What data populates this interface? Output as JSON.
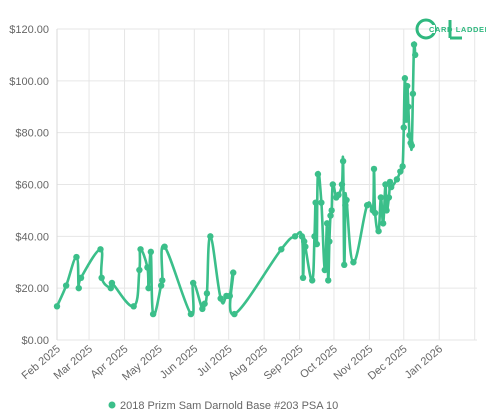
{
  "logo": {
    "text": "CARD LADDER",
    "color": "#2fb87f"
  },
  "chart_data": {
    "type": "line",
    "title": "",
    "xlabel": "",
    "ylabel": "",
    "ylim": [
      0,
      120
    ],
    "yticks": [
      0,
      20,
      40,
      60,
      80,
      100,
      120
    ],
    "ytick_labels": [
      "$0.00",
      "$20.00",
      "$40.00",
      "$60.00",
      "$80.00",
      "$100.00",
      "$120.00"
    ],
    "xlim": [
      "2025-02-01",
      "2026-02-03"
    ],
    "xtick_labels": [
      "Feb 2025",
      "Mar 2025",
      "Apr 2025",
      "May 2025",
      "Jun 2025",
      "Jul 2025",
      "Aug 2025",
      "Sep 2025",
      "Oct 2025",
      "Nov 2025",
      "Dec 2025",
      "Jan 2026"
    ],
    "grid": true,
    "legend_position": "bottom",
    "series": [
      {
        "name": "2018 Prizm Sam Darnold Base #203 PSA 10",
        "color": "#3bbf8a",
        "points": [
          [
            "2025-02-01",
            13
          ],
          [
            "2025-02-09",
            21
          ],
          [
            "2025-02-18",
            32
          ],
          [
            "2025-02-20",
            20
          ],
          [
            "2025-02-22",
            24
          ],
          [
            "2025-03-11",
            35
          ],
          [
            "2025-03-12",
            24
          ],
          [
            "2025-03-20",
            20
          ],
          [
            "2025-03-21",
            22
          ],
          [
            "2025-04-09",
            13
          ],
          [
            "2025-04-14",
            27
          ],
          [
            "2025-04-15",
            35
          ],
          [
            "2025-04-21",
            28
          ],
          [
            "2025-04-22",
            20
          ],
          [
            "2025-04-24",
            34
          ],
          [
            "2025-04-26",
            10
          ],
          [
            "2025-05-03",
            21
          ],
          [
            "2025-05-04",
            23
          ],
          [
            "2025-05-06",
            36
          ],
          [
            "2025-05-29",
            10
          ],
          [
            "2025-05-31",
            22
          ],
          [
            "2025-06-08",
            12
          ],
          [
            "2025-06-10",
            14
          ],
          [
            "2025-06-12",
            18
          ],
          [
            "2025-06-15",
            40
          ],
          [
            "2025-06-24",
            16
          ],
          [
            "2025-06-29",
            17
          ],
          [
            "2025-07-02",
            17
          ],
          [
            "2025-07-05",
            26
          ],
          [
            "2025-07-06",
            10
          ],
          [
            "2025-08-16",
            35
          ],
          [
            "2025-08-28",
            40
          ],
          [
            "2025-09-03",
            40
          ],
          [
            "2025-09-04",
            24
          ],
          [
            "2025-09-05",
            38
          ],
          [
            "2025-09-06",
            36
          ],
          [
            "2025-09-12",
            23
          ],
          [
            "2025-09-14",
            40
          ],
          [
            "2025-09-15",
            53
          ],
          [
            "2025-09-16",
            37
          ],
          [
            "2025-09-17",
            64
          ],
          [
            "2025-09-20",
            53
          ],
          [
            "2025-09-23",
            27
          ],
          [
            "2025-09-25",
            45
          ],
          [
            "2025-09-26",
            23
          ],
          [
            "2025-09-27",
            38
          ],
          [
            "2025-09-28",
            48
          ],
          [
            "2025-09-29",
            50
          ],
          [
            "2025-09-30",
            60
          ],
          [
            "2025-10-03",
            55
          ],
          [
            "2025-10-05",
            56
          ],
          [
            "2025-10-08",
            60
          ],
          [
            "2025-10-09",
            69
          ],
          [
            "2025-10-10",
            29
          ],
          [
            "2025-10-11",
            52
          ],
          [
            "2025-10-12",
            54
          ],
          [
            "2025-10-18",
            30
          ],
          [
            "2025-10-30",
            52
          ],
          [
            "2025-11-04",
            50
          ],
          [
            "2025-11-05",
            66
          ],
          [
            "2025-11-06",
            49
          ],
          [
            "2025-11-09",
            42
          ],
          [
            "2025-11-11",
            55
          ],
          [
            "2025-11-13",
            45
          ],
          [
            "2025-11-15",
            60
          ],
          [
            "2025-11-16",
            50
          ],
          [
            "2025-11-18",
            55
          ],
          [
            "2025-11-19",
            61
          ],
          [
            "2025-11-20",
            59
          ],
          [
            "2025-11-25",
            62
          ],
          [
            "2025-11-28",
            65
          ],
          [
            "2025-11-30",
            67
          ],
          [
            "2025-12-01",
            82
          ],
          [
            "2025-12-02",
            101
          ],
          [
            "2025-12-03",
            85
          ],
          [
            "2025-12-04",
            98
          ],
          [
            "2025-12-05",
            90
          ],
          [
            "2025-12-06",
            79
          ],
          [
            "2025-12-07",
            76
          ],
          [
            "2025-12-08",
            75
          ],
          [
            "2025-12-09",
            95
          ],
          [
            "2025-12-10",
            114
          ],
          [
            "2025-12-11",
            110
          ]
        ]
      }
    ]
  }
}
